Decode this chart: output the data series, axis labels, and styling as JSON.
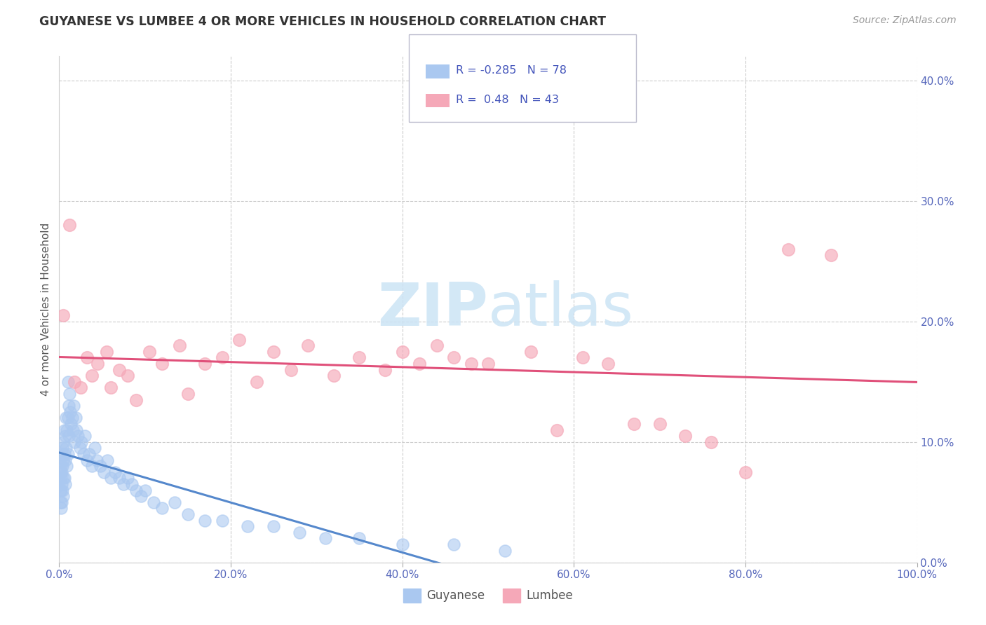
{
  "title": "GUYANESE VS LUMBEE 4 OR MORE VEHICLES IN HOUSEHOLD CORRELATION CHART",
  "source": "Source: ZipAtlas.com",
  "ylabel": "4 or more Vehicles in Household",
  "xlim": [
    0.0,
    100.0
  ],
  "ylim": [
    0.0,
    42.0
  ],
  "xticks": [
    0,
    20,
    40,
    60,
    80,
    100
  ],
  "yticks": [
    0,
    10,
    20,
    30,
    40
  ],
  "xtick_labels": [
    "0.0%",
    "20.0%",
    "40.0%",
    "60.0%",
    "80.0%",
    "100.0%"
  ],
  "ytick_labels": [
    "0.0%",
    "10.0%",
    "20.0%",
    "30.0%",
    "40.0%"
  ],
  "guyanese_R": -0.285,
  "guyanese_N": 78,
  "lumbee_R": 0.48,
  "lumbee_N": 43,
  "guyanese_color": "#aac8f0",
  "lumbee_color": "#f5a8b8",
  "guyanese_line_color": "#5588cc",
  "lumbee_line_color": "#e0507a",
  "watermark_color": "#cce4f5",
  "background_color": "#ffffff",
  "guyanese_x": [
    0.1,
    0.1,
    0.1,
    0.2,
    0.2,
    0.2,
    0.2,
    0.3,
    0.3,
    0.3,
    0.3,
    0.4,
    0.4,
    0.4,
    0.5,
    0.5,
    0.5,
    0.5,
    0.6,
    0.6,
    0.6,
    0.7,
    0.7,
    0.7,
    0.8,
    0.8,
    0.9,
    0.9,
    1.0,
    1.0,
    1.0,
    1.1,
    1.1,
    1.2,
    1.3,
    1.4,
    1.5,
    1.6,
    1.7,
    1.8,
    1.9,
    2.0,
    2.2,
    2.4,
    2.6,
    2.8,
    3.0,
    3.2,
    3.5,
    3.8,
    4.1,
    4.4,
    4.8,
    5.2,
    5.6,
    6.0,
    6.5,
    7.0,
    7.5,
    8.0,
    8.5,
    9.0,
    9.5,
    10.0,
    11.0,
    12.0,
    13.5,
    15.0,
    17.0,
    19.0,
    22.0,
    25.0,
    28.0,
    31.0,
    35.0,
    40.0,
    46.0,
    52.0
  ],
  "guyanese_y": [
    7.5,
    6.0,
    5.0,
    8.0,
    7.0,
    6.0,
    4.5,
    9.0,
    7.5,
    6.5,
    5.0,
    9.5,
    8.0,
    6.0,
    10.0,
    8.5,
    7.0,
    5.5,
    11.0,
    9.0,
    7.0,
    10.5,
    8.5,
    6.5,
    12.0,
    9.5,
    11.0,
    8.0,
    15.0,
    12.0,
    9.0,
    13.0,
    10.5,
    14.0,
    12.5,
    11.5,
    12.0,
    11.0,
    13.0,
    10.0,
    12.0,
    11.0,
    10.5,
    9.5,
    10.0,
    9.0,
    10.5,
    8.5,
    9.0,
    8.0,
    9.5,
    8.5,
    8.0,
    7.5,
    8.5,
    7.0,
    7.5,
    7.0,
    6.5,
    7.0,
    6.5,
    6.0,
    5.5,
    6.0,
    5.0,
    4.5,
    5.0,
    4.0,
    3.5,
    3.5,
    3.0,
    3.0,
    2.5,
    2.0,
    2.0,
    1.5,
    1.5,
    1.0
  ],
  "lumbee_x": [
    0.5,
    1.2,
    1.8,
    2.5,
    3.2,
    3.8,
    4.5,
    5.5,
    6.0,
    7.0,
    8.0,
    9.0,
    10.5,
    12.0,
    14.0,
    15.0,
    17.0,
    19.0,
    21.0,
    23.0,
    25.0,
    27.0,
    29.0,
    32.0,
    35.0,
    38.0,
    40.0,
    42.0,
    44.0,
    46.0,
    48.0,
    50.0,
    55.0,
    58.0,
    61.0,
    64.0,
    67.0,
    70.0,
    73.0,
    76.0,
    80.0,
    85.0,
    90.0
  ],
  "lumbee_y": [
    20.5,
    28.0,
    15.0,
    14.5,
    17.0,
    15.5,
    16.5,
    17.5,
    14.5,
    16.0,
    15.5,
    13.5,
    17.5,
    16.5,
    18.0,
    14.0,
    16.5,
    17.0,
    18.5,
    15.0,
    17.5,
    16.0,
    18.0,
    15.5,
    17.0,
    16.0,
    17.5,
    16.5,
    18.0,
    17.0,
    16.5,
    16.5,
    17.5,
    11.0,
    17.0,
    16.5,
    11.5,
    11.5,
    10.5,
    10.0,
    7.5,
    26.0,
    25.5
  ]
}
